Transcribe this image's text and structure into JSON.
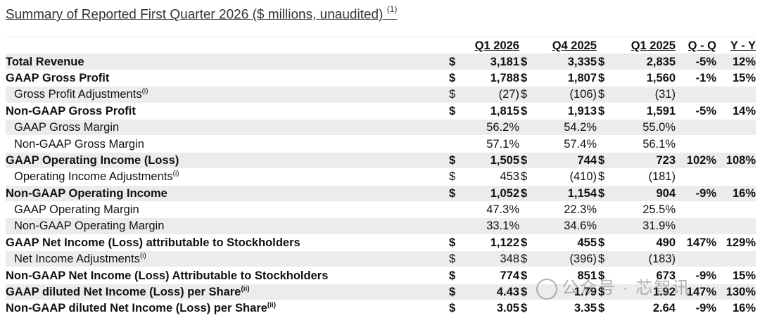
{
  "title": "Summary of Reported First Quarter 2026 ($ millions, unaudited)",
  "title_note": "(1)",
  "columns": [
    "Q1 2026",
    "Q4 2025",
    "Q1 2025",
    "Q - Q",
    "Y - Y"
  ],
  "rows": [
    {
      "label": "Total Revenue",
      "note": "",
      "bold": true,
      "indent": false,
      "cells": [
        [
          "$",
          "3,181"
        ],
        [
          "$",
          "3,335"
        ],
        [
          "$",
          "2,835"
        ]
      ],
      "qq": "-5%",
      "yy": "12%"
    },
    {
      "label": "GAAP Gross Profit",
      "note": "",
      "bold": true,
      "indent": false,
      "cells": [
        [
          "$",
          "1,788"
        ],
        [
          "$",
          "1,807"
        ],
        [
          "$",
          "1,560"
        ]
      ],
      "qq": "-1%",
      "yy": "15%"
    },
    {
      "label": "Gross Profit Adjustments",
      "note": "(i)",
      "bold": false,
      "indent": true,
      "cells": [
        [
          "$",
          "(27)"
        ],
        [
          "$",
          "(106)"
        ],
        [
          "$",
          "(31)"
        ]
      ],
      "qq": "",
      "yy": ""
    },
    {
      "label": "Non-GAAP Gross Profit",
      "note": "",
      "bold": true,
      "indent": false,
      "cells": [
        [
          "$",
          "1,815"
        ],
        [
          "$",
          "1,913"
        ],
        [
          "$",
          "1,591"
        ]
      ],
      "qq": "-5%",
      "yy": "14%"
    },
    {
      "label": "GAAP Gross Margin",
      "note": "",
      "bold": false,
      "indent": true,
      "cells": [
        [
          "",
          "56.2%"
        ],
        [
          "",
          "54.2%"
        ],
        [
          "",
          "55.0%"
        ]
      ],
      "qq": "",
      "yy": ""
    },
    {
      "label": "Non-GAAP Gross Margin",
      "note": "",
      "bold": false,
      "indent": true,
      "cells": [
        [
          "",
          "57.1%"
        ],
        [
          "",
          "57.4%"
        ],
        [
          "",
          "56.1%"
        ]
      ],
      "qq": "",
      "yy": ""
    },
    {
      "label": "GAAP Operating Income (Loss)",
      "note": "",
      "bold": true,
      "indent": false,
      "cells": [
        [
          "$",
          "1,505"
        ],
        [
          "$",
          "744"
        ],
        [
          "$",
          "723"
        ]
      ],
      "qq": "102%",
      "yy": "108%"
    },
    {
      "label": "Operating Income Adjustments",
      "note": "(i)",
      "bold": false,
      "indent": true,
      "cells": [
        [
          "$",
          "453"
        ],
        [
          "$",
          "(410)"
        ],
        [
          "$",
          "(181)"
        ]
      ],
      "qq": "",
      "yy": ""
    },
    {
      "label": "Non-GAAP Operating Income",
      "note": "",
      "bold": true,
      "indent": false,
      "cells": [
        [
          "$",
          "1,052"
        ],
        [
          "$",
          "1,154"
        ],
        [
          "$",
          "904"
        ]
      ],
      "qq": "-9%",
      "yy": "16%"
    },
    {
      "label": "GAAP Operating Margin",
      "note": "",
      "bold": false,
      "indent": true,
      "cells": [
        [
          "",
          "47.3%"
        ],
        [
          "",
          "22.3%"
        ],
        [
          "",
          "25.5%"
        ]
      ],
      "qq": "",
      "yy": ""
    },
    {
      "label": "Non-GAAP Operating Margin",
      "note": "",
      "bold": false,
      "indent": true,
      "cells": [
        [
          "",
          "33.1%"
        ],
        [
          "",
          "34.6%"
        ],
        [
          "",
          "31.9%"
        ]
      ],
      "qq": "",
      "yy": ""
    },
    {
      "label": "GAAP Net Income (Loss) attributable to Stockholders",
      "note": "",
      "bold": true,
      "indent": false,
      "cells": [
        [
          "$",
          "1,122"
        ],
        [
          "$",
          "455"
        ],
        [
          "$",
          "490"
        ]
      ],
      "qq": "147%",
      "yy": "129%"
    },
    {
      "label": "Net Income Adjustments",
      "note": "(i)",
      "bold": false,
      "indent": true,
      "cells": [
        [
          "$",
          "348"
        ],
        [
          "$",
          "(396)"
        ],
        [
          "$",
          "(183)"
        ]
      ],
      "qq": "",
      "yy": ""
    },
    {
      "label": "Non-GAAP Net Income (Loss) Attributable to Stockholders",
      "note": "",
      "bold": true,
      "indent": false,
      "cells": [
        [
          "$",
          "774"
        ],
        [
          "$",
          "851"
        ],
        [
          "$",
          "673"
        ]
      ],
      "qq": "-9%",
      "yy": "15%"
    },
    {
      "label": "GAAP diluted Net Income (Loss) per Share",
      "note": "(ii)",
      "bold": true,
      "indent": false,
      "cells": [
        [
          "$",
          "4.43"
        ],
        [
          "$",
          "1.79"
        ],
        [
          "$",
          "1.92"
        ]
      ],
      "qq": "147%",
      "yy": "130%"
    },
    {
      "label": "Non-GAAP diluted Net Income (Loss) per Share",
      "note": "(ii)",
      "bold": true,
      "indent": false,
      "cells": [
        [
          "$",
          "3.05"
        ],
        [
          "$",
          "3.35"
        ],
        [
          "$",
          "2.64"
        ]
      ],
      "qq": "-9%",
      "yy": "16%"
    }
  ],
  "watermark": "公众号 · 芯智讯"
}
